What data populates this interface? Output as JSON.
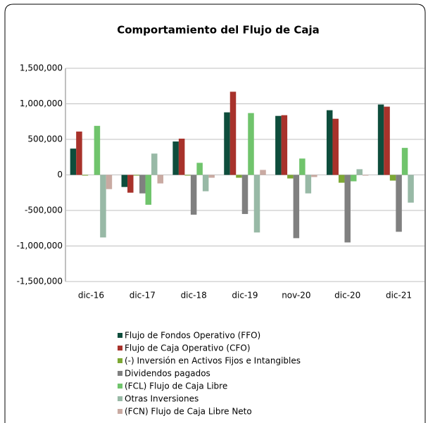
{
  "chart_data": {
    "type": "bar",
    "title": "Comportamiento del Flujo de Caja",
    "categories": [
      "dic-16",
      "dic-17",
      "dic-18",
      "dic-19",
      "nov-20",
      "dic-20",
      "dic-21"
    ],
    "series": [
      {
        "name": "Flujo de Fondos Operativo (FFO)",
        "color": "#0e4d3c",
        "values": [
          370000,
          -170000,
          470000,
          880000,
          830000,
          910000,
          990000
        ]
      },
      {
        "name": "Flujo de Caja Operativo (CFO)",
        "color": "#a8322b",
        "values": [
          610000,
          -250000,
          510000,
          1170000,
          840000,
          790000,
          960000
        ]
      },
      {
        "name": "(-) Inversión en Activos Fijos e Intangibles",
        "color": "#7da834",
        "values": [
          -10000,
          -10000,
          -10000,
          -40000,
          -50000,
          -110000,
          -80000
        ]
      },
      {
        "name": "Dividendos pagados",
        "color": "#808080",
        "values": [
          0,
          -260000,
          -560000,
          -550000,
          -890000,
          -950000,
          -800000
        ]
      },
      {
        "name": "(FCL) Flujo de Caja Libre",
        "color": "#70c46c",
        "values": [
          690000,
          -420000,
          170000,
          870000,
          230000,
          -90000,
          380000
        ]
      },
      {
        "name": "Otras Inversiones",
        "color": "#98b9a6",
        "values": [
          -880000,
          300000,
          -230000,
          -810000,
          -260000,
          80000,
          -390000
        ]
      },
      {
        "name": "(FCN) Flujo de Caja Libre Neto",
        "color": "#c9aaa2",
        "values": [
          -200000,
          -120000,
          -40000,
          70000,
          -30000,
          -10000,
          0
        ]
      }
    ],
    "ylim": [
      -1500000,
      1500000
    ],
    "yticks": [
      {
        "value": -1500000,
        "label": "-1,500,000"
      },
      {
        "value": -1000000,
        "label": "-1,000,000"
      },
      {
        "value": -500000,
        "label": "-500,000"
      },
      0,
      {
        "value": 500000,
        "label": "500,000"
      },
      {
        "value": 1000000,
        "label": "1,000,000"
      },
      {
        "value": 1500000,
        "label": "1,500,000"
      }
    ],
    "grid": true
  }
}
